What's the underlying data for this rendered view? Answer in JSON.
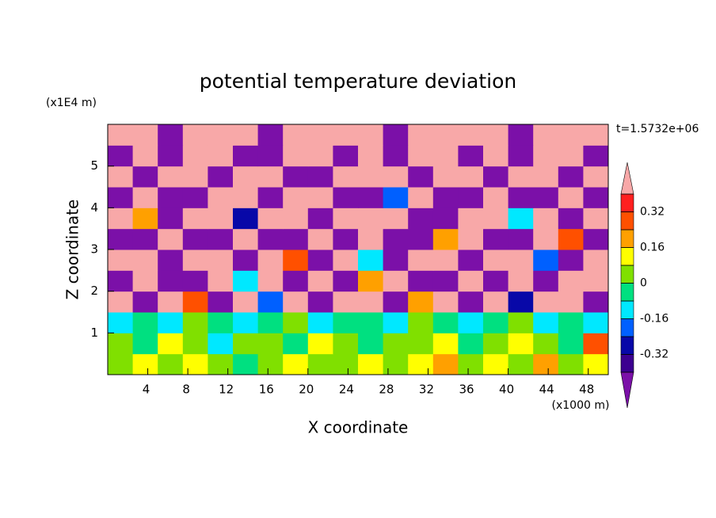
{
  "chart_data": {
    "type": "contour",
    "title": "potential temperature deviation",
    "xlabel": "X coordinate",
    "ylabel": "Z coordinate",
    "x_unit": "(x1000 m)",
    "y_unit": "(x1E4 m)",
    "annotation": "t=1.5732e+06",
    "xlim": [
      0,
      50
    ],
    "ylim": [
      0,
      6
    ],
    "xticks": [
      4,
      8,
      12,
      16,
      20,
      24,
      28,
      32,
      36,
      40,
      44,
      48
    ],
    "yticks": [
      1,
      2,
      3,
      4,
      5
    ],
    "levels": [
      -0.4,
      -0.32,
      -0.24,
      -0.16,
      -0.08,
      0,
      0.08,
      0.16,
      0.24,
      0.32,
      0.4
    ],
    "colors": [
      "#7b10a8",
      "#3c0090",
      "#0808a8",
      "#0060ff",
      "#00e8ff",
      "#00e080",
      "#80e000",
      "#ffff00",
      "#ffa000",
      "#ff5000",
      "#ff2020",
      "#f8a8a8"
    ],
    "colorbar_ticks": [
      -0.32,
      -0.16,
      0,
      0.16,
      0.32
    ],
    "x": [
      1.25,
      3.75,
      6.25,
      8.75,
      11.25,
      13.75,
      16.25,
      18.75,
      21.25,
      23.75,
      26.25,
      28.75,
      31.25,
      33.75,
      36.25,
      38.75,
      41.25,
      43.75,
      46.25,
      48.75
    ],
    "z": [
      0.25,
      0.75,
      1.25,
      1.75,
      2.25,
      2.75,
      3.25,
      3.75,
      4.25,
      4.75,
      5.25,
      5.75
    ],
    "values": [
      [
        0.02,
        0.1,
        0.02,
        0.1,
        0.02,
        -0.02,
        0.02,
        0.1,
        0.02,
        0.02,
        0.1,
        0.02,
        0.1,
        0.2,
        0.02,
        0.1,
        0.02,
        0.2,
        0.02,
        0.1
      ],
      [
        0.02,
        -0.02,
        0.1,
        0.02,
        -0.1,
        0.02,
        0.02,
        -0.02,
        0.1,
        0.02,
        -0.02,
        0.02,
        0.02,
        0.1,
        -0.02,
        0.02,
        0.1,
        0.02,
        -0.02,
        0.3
      ],
      [
        -0.1,
        -0.02,
        -0.1,
        0.02,
        -0.02,
        -0.1,
        -0.02,
        0.02,
        -0.1,
        -0.02,
        -0.02,
        -0.1,
        0.02,
        -0.02,
        -0.1,
        -0.02,
        0.02,
        -0.1,
        -0.02,
        -0.1
      ],
      [
        0.5,
        -0.5,
        0.5,
        0.3,
        -0.5,
        0.5,
        -0.2,
        0.5,
        -0.5,
        0.5,
        0.5,
        -0.5,
        0.2,
        0.5,
        -0.5,
        0.5,
        -0.3,
        0.5,
        0.5,
        -0.5
      ],
      [
        -0.5,
        0.5,
        -0.5,
        -0.5,
        0.5,
        -0.1,
        0.5,
        -0.5,
        0.5,
        -0.5,
        0.2,
        0.5,
        -0.5,
        -0.5,
        0.5,
        -0.5,
        0.5,
        -0.5,
        0.5,
        0.5
      ],
      [
        0.5,
        0.5,
        -0.5,
        0.5,
        0.5,
        -0.5,
        0.5,
        0.3,
        -0.5,
        0.5,
        -0.1,
        -0.5,
        0.5,
        0.5,
        -0.5,
        0.5,
        0.5,
        -0.2,
        -0.5,
        0.5
      ],
      [
        -0.5,
        -0.5,
        0.5,
        -0.5,
        -0.5,
        0.5,
        -0.5,
        -0.5,
        0.5,
        -0.5,
        0.5,
        -0.5,
        -0.5,
        0.2,
        0.5,
        -0.5,
        -0.5,
        0.5,
        0.3,
        -0.5
      ],
      [
        0.5,
        0.2,
        -0.5,
        0.5,
        0.5,
        -0.3,
        0.5,
        0.5,
        -0.5,
        0.5,
        0.5,
        0.5,
        -0.5,
        -0.5,
        0.5,
        0.5,
        -0.1,
        0.5,
        -0.5,
        0.5
      ],
      [
        -0.5,
        0.5,
        -0.5,
        -0.5,
        0.5,
        0.5,
        -0.5,
        0.5,
        0.5,
        -0.5,
        -0.5,
        -0.2,
        0.5,
        -0.5,
        -0.5,
        0.5,
        -0.5,
        -0.5,
        0.5,
        -0.5
      ],
      [
        0.5,
        -0.5,
        0.5,
        0.5,
        -0.5,
        0.5,
        0.5,
        -0.5,
        -0.5,
        0.5,
        0.5,
        0.5,
        -0.5,
        0.5,
        0.5,
        -0.5,
        0.5,
        0.5,
        -0.5,
        0.5
      ],
      [
        -0.5,
        0.5,
        -0.5,
        0.5,
        0.5,
        -0.5,
        -0.5,
        0.5,
        0.5,
        -0.5,
        0.5,
        -0.5,
        0.5,
        0.5,
        -0.5,
        0.5,
        -0.5,
        0.5,
        0.5,
        -0.5
      ],
      [
        0.5,
        0.5,
        -0.5,
        0.5,
        0.5,
        0.5,
        -0.5,
        0.5,
        0.5,
        0.5,
        0.5,
        -0.5,
        0.5,
        0.5,
        0.5,
        0.5,
        -0.5,
        0.5,
        0.5,
        0.5
      ]
    ]
  }
}
